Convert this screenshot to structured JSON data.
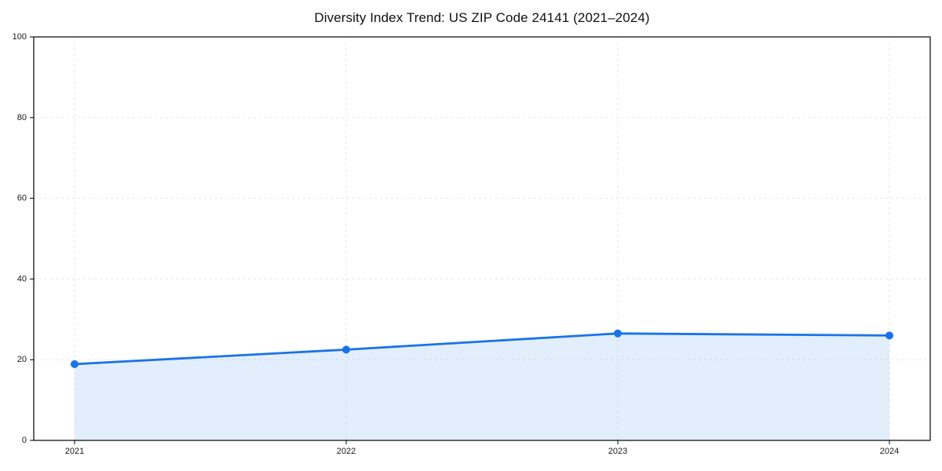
{
  "chart_data": {
    "type": "area",
    "title": "Diversity Index Trend: US ZIP Code 24141 (2021–2024)",
    "categories": [
      "2021",
      "2022",
      "2023",
      "2024"
    ],
    "series": [
      {
        "name": "Diversity Index",
        "values": [
          18.9,
          22.5,
          26.5,
          26.0
        ]
      }
    ],
    "xlabel": "",
    "ylabel": "",
    "ylim": [
      0,
      100
    ],
    "yticks": [
      0,
      20,
      40,
      60,
      80,
      100
    ],
    "grid": true,
    "grid_style": "dashed",
    "legend": "none",
    "marker": "circle",
    "colors": {
      "line": "#1a73e8",
      "marker": "#1a73e8",
      "fill": "rgba(26,115,232,0.12)",
      "gridline": "#e6e6e6",
      "spine": "#000000",
      "tick_label": "#1a1a1a",
      "title": "#111111",
      "background": "#ffffff"
    }
  }
}
